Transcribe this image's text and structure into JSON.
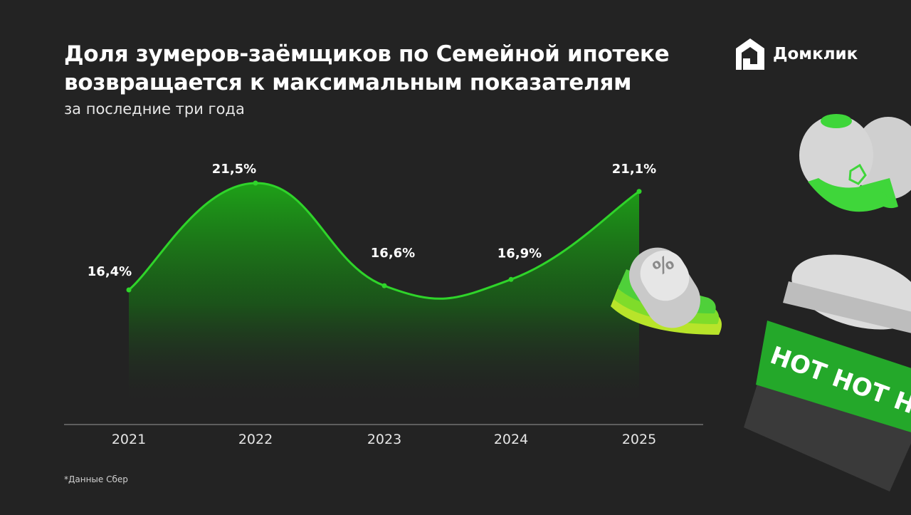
{
  "header": {
    "title_line1": "Доля зумеров-заёмщиков по Семейной ипотеке",
    "title_line2": "возвращается к максимальным показателям",
    "subtitle": "за последние три года"
  },
  "brand": {
    "name": "Домклик",
    "logo_icon": "house-logo-icon"
  },
  "footnote": "*Данные Сбер",
  "decor": {
    "cap_icon": "baseball-cap-icon",
    "percent_badge_icon": "percent-badge-icon",
    "cup_icon": "coffee-cup-icon",
    "cup_text": "HOT HOT HOT"
  },
  "colors": {
    "background": "#232323",
    "line": "#2fd42a",
    "area_top": "#1e9c18",
    "axis": "#9a9a9a"
  },
  "chart_data": {
    "type": "area",
    "categories": [
      "2021",
      "2022",
      "2023",
      "2024",
      "2025"
    ],
    "values": [
      16.4,
      21.5,
      16.6,
      16.9,
      21.1
    ],
    "labels": [
      "16,4%",
      "21,5%",
      "16,6%",
      "16,9%",
      "21,1%"
    ],
    "grid": false
  }
}
